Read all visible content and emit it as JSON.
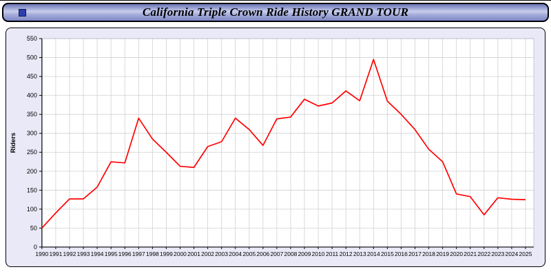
{
  "banner": {
    "title": "California Triple Crown Ride History GRAND TOUR"
  },
  "chart_data": {
    "type": "line",
    "title": "California Triple Crown Ride History GRAND TOUR",
    "xlabel": "",
    "ylabel": "Riders",
    "ylim": [
      0,
      550
    ],
    "ytick_step": 50,
    "yticks": [
      0,
      50,
      100,
      150,
      200,
      250,
      300,
      350,
      400,
      450,
      500,
      550
    ],
    "grid": true,
    "legend_position": "none",
    "x": [
      1990,
      1991,
      1992,
      1993,
      1994,
      1995,
      1996,
      1997,
      1998,
      1999,
      2000,
      2001,
      2002,
      2003,
      2004,
      2005,
      2006,
      2007,
      2008,
      2009,
      2010,
      2011,
      2012,
      2013,
      2014,
      2015,
      2016,
      2017,
      2018,
      2019,
      2020,
      2021,
      2022,
      2023,
      2024,
      2025
    ],
    "series": [
      {
        "name": "Riders",
        "color": "#ff0000",
        "values": [
          50,
          90,
          127,
          127,
          158,
          225,
          222,
          340,
          285,
          250,
          213,
          210,
          265,
          278,
          340,
          310,
          268,
          338,
          343,
          390,
          372,
          380,
          412,
          386,
          495,
          385,
          350,
          310,
          258,
          225,
          140,
          133,
          85,
          130,
          126,
          125
        ]
      }
    ],
    "colors": {
      "line": "#ff0000",
      "plot_background": "#ffffff",
      "panel_background": "#e9e9f7",
      "grid": "#d0d0d0",
      "axis": "#000000"
    }
  }
}
